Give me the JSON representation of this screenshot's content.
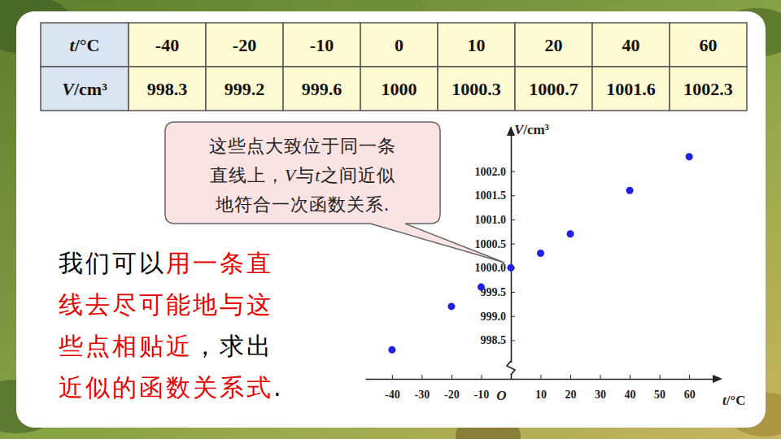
{
  "chart_data": {
    "type": "scatter",
    "xlabel": "t/°C",
    "ylabel": "V/cm³",
    "x": [
      -40,
      -20,
      -10,
      0,
      10,
      20,
      40,
      60
    ],
    "values": [
      998.3,
      999.2,
      999.6,
      1000,
      1000.3,
      1000.7,
      1001.6,
      1002.3
    ],
    "color": "#1f1fe0",
    "marker": "circle",
    "grid": false,
    "xlim": [
      -49,
      69
    ],
    "xticks": [
      -40,
      -30,
      -20,
      -10,
      {
        "value": 0,
        "label": "O"
      },
      10,
      20,
      30,
      40,
      50,
      60
    ],
    "ylim": [
      997.7,
      1002.8
    ],
    "yticks": [
      998.5,
      {
        "value": 999,
        "label": "999.0"
      },
      999.5,
      {
        "value": 1000,
        "label": "1000.0"
      },
      1000.5,
      {
        "value": 1001,
        "label": "1001.0"
      },
      1001.5,
      {
        "value": 1002,
        "label": "1002.0"
      }
    ]
  },
  "table": {
    "rows": [
      [
        "t/°C",
        "-40",
        "-20",
        "-10",
        "0",
        "10",
        "20",
        "40",
        "60"
      ],
      [
        "V/cm³",
        "998.3",
        "999.2",
        "999.6",
        "1000",
        "1000.3",
        "1000.7",
        "1001.6",
        "1002.3"
      ]
    ]
  },
  "callout": {
    "lines": [
      "这些点大致位于同一条",
      "直线上，V与t之间近似",
      "地符合一次函数关系."
    ]
  },
  "paragraph": {
    "lines": [
      [
        {
          "text": "我们可以",
          "color": "#000000"
        },
        {
          "text": "用一条直",
          "color": "#e60000"
        }
      ],
      [
        {
          "text": "线去尽可能地与这",
          "color": "#e60000"
        }
      ],
      [
        {
          "text": "些点相贴近",
          "color": "#e60000"
        },
        {
          "text": "，求出",
          "color": "#000000"
        }
      ],
      [
        {
          "text": "近似的函数关系式",
          "color": "#e60000"
        },
        {
          "text": ".",
          "color": "#000000"
        }
      ]
    ]
  }
}
